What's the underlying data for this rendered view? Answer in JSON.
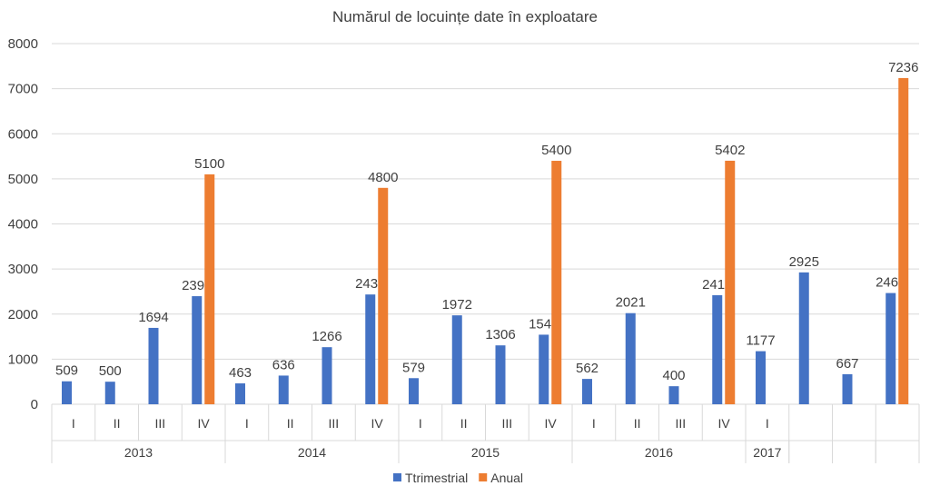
{
  "chart_data": {
    "type": "bar",
    "title": "Numărul de locuințe date în exploatare",
    "xlabel": "",
    "ylabel": "",
    "ylim": [
      0,
      8000
    ],
    "yticks": [
      "0",
      "1000",
      "2000",
      "3000",
      "4000",
      "5000",
      "6000",
      "7000",
      "8000"
    ],
    "grid": true,
    "legend_position": "bottom",
    "categories": [
      "I",
      "II",
      "III",
      "IV",
      "I",
      "II",
      "III",
      "IV",
      "I",
      "II",
      "III",
      "IV",
      "I",
      "II",
      "III",
      "IV",
      "I",
      "",
      "",
      ""
    ],
    "groups": [
      {
        "label": "2013",
        "span": 4
      },
      {
        "label": "2014",
        "span": 4
      },
      {
        "label": "2015",
        "span": 4
      },
      {
        "label": "2016",
        "span": 4
      },
      {
        "label": "2017",
        "span": 1
      },
      {
        "label": "",
        "span": 1
      },
      {
        "label": "",
        "span": 1
      },
      {
        "label": "",
        "span": 1
      }
    ],
    "series": [
      {
        "name": "Ttrimestrial",
        "color": "#4472C4",
        "values": [
          509,
          500,
          1694,
          2397,
          463,
          636,
          1266,
          2435,
          579,
          1972,
          1306,
          1543,
          562,
          2021,
          400,
          2419,
          1177,
          2925,
          667,
          2467
        ]
      },
      {
        "name": "Anual",
        "color": "#ED7D31",
        "values": [
          null,
          null,
          null,
          5100,
          null,
          null,
          null,
          4800,
          null,
          null,
          null,
          5400,
          null,
          null,
          null,
          5402,
          null,
          null,
          null,
          7236
        ]
      }
    ]
  }
}
